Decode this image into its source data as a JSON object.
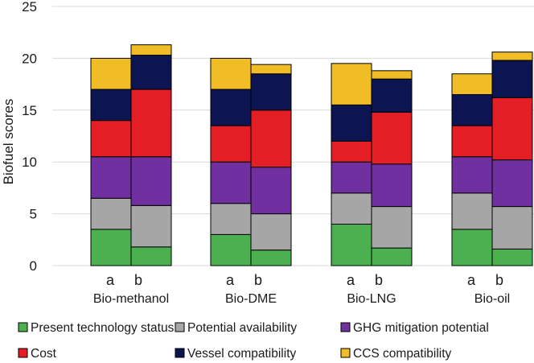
{
  "chart_data": {
    "type": "bar",
    "stacked": true,
    "title": "",
    "xlabel": "",
    "ylabel": "Biofuel scores",
    "ylim": [
      0,
      25
    ],
    "yticks": [
      0,
      5,
      10,
      15,
      20,
      25
    ],
    "grid": true,
    "legend_position": "bottom",
    "groups": [
      "Bio-methanol",
      "Bio-DME",
      "Bio-LNG",
      "Bio-oil"
    ],
    "sub_labels": [
      "a",
      "b"
    ],
    "categories": [
      "Bio-methanol a",
      "Bio-methanol b",
      "Bio-DME a",
      "Bio-DME b",
      "Bio-LNG a",
      "Bio-LNG b",
      "Bio-oil a",
      "Bio-oil b"
    ],
    "series": [
      {
        "name": "Present technology status",
        "color": "#4caf50",
        "values": [
          3.5,
          1.8,
          3.0,
          1.5,
          4.0,
          1.7,
          3.5,
          1.6
        ]
      },
      {
        "name": "Potential availability",
        "color": "#a6a6a6",
        "values": [
          3.0,
          4.0,
          3.0,
          3.5,
          3.0,
          4.0,
          3.5,
          4.1
        ]
      },
      {
        "name": "GHG mitigation potential",
        "color": "#7030a0",
        "values": [
          4.0,
          4.7,
          4.0,
          4.5,
          3.0,
          4.1,
          3.5,
          4.5
        ]
      },
      {
        "name": "Cost",
        "color": "#e31e24",
        "values": [
          3.5,
          6.5,
          3.5,
          5.5,
          2.0,
          5.0,
          3.0,
          6.0
        ]
      },
      {
        "name": "Vessel compatibility",
        "color": "#0d1452",
        "values": [
          3.0,
          3.3,
          3.5,
          3.5,
          3.5,
          3.2,
          3.0,
          3.6
        ]
      },
      {
        "name": "CCS compatibility",
        "color": "#f0bd27",
        "values": [
          3.0,
          1.0,
          3.0,
          0.9,
          4.0,
          0.8,
          2.0,
          0.8
        ]
      }
    ]
  }
}
